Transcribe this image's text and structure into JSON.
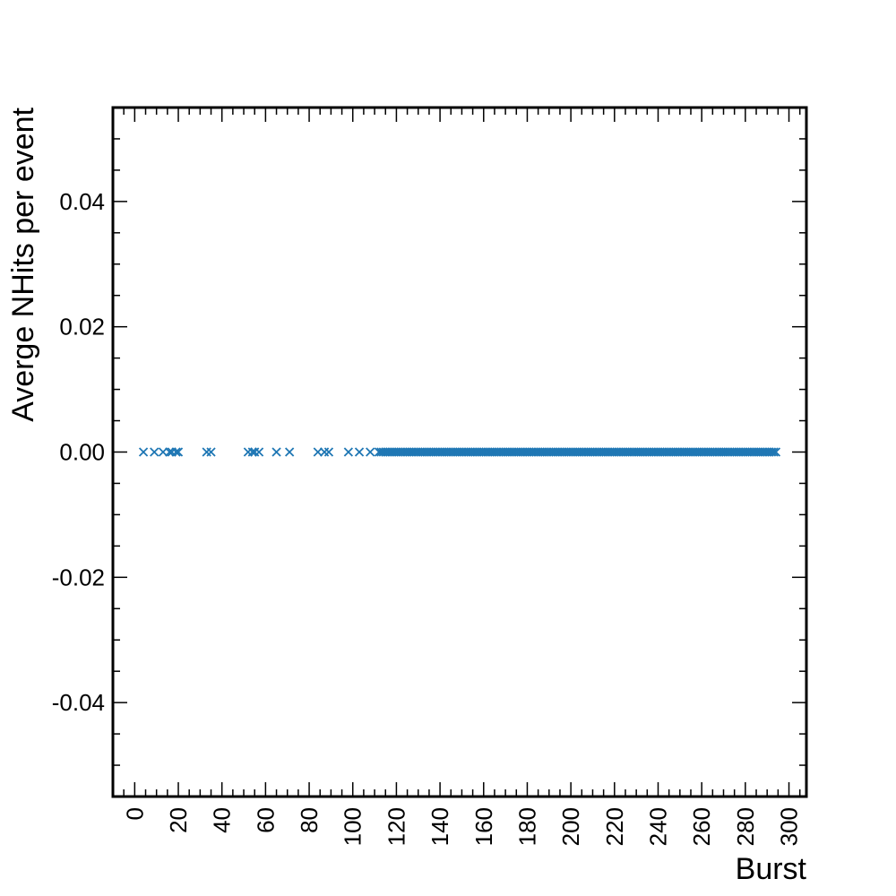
{
  "chart_data": {
    "type": "scatter",
    "title": "",
    "xlabel": "Burst",
    "ylabel": "Averge NHits per event",
    "xlim": [
      -10,
      308
    ],
    "ylim": [
      -0.055,
      0.055
    ],
    "x_ticks": [
      0,
      20,
      40,
      60,
      80,
      100,
      120,
      140,
      160,
      180,
      200,
      220,
      240,
      260,
      280,
      300
    ],
    "x_tick_labels": [
      "0",
      "20",
      "40",
      "60",
      "80",
      "100",
      "120",
      "140",
      "160",
      "180",
      "200",
      "220",
      "240",
      "260",
      "280",
      "300"
    ],
    "y_ticks": [
      -0.04,
      -0.02,
      0.0,
      0.02,
      0.04
    ],
    "y_tick_labels": [
      "-0.04",
      "-0.02",
      "0.00",
      "0.02",
      "0.04"
    ],
    "grid": false,
    "marker": "x",
    "color": "#1f77b4",
    "series": [
      {
        "x": [
          4,
          9,
          13,
          16,
          17,
          19,
          20,
          33,
          35,
          52,
          54,
          55,
          57,
          65,
          71,
          84,
          87,
          89,
          98,
          103,
          108,
          112,
          113,
          114,
          115,
          116,
          117,
          118,
          119,
          120,
          121,
          122,
          123,
          124,
          125,
          126,
          127,
          128,
          129,
          130,
          131,
          132,
          133,
          134,
          135,
          136,
          137,
          138,
          139,
          140,
          141,
          142,
          143,
          144,
          145,
          146,
          147,
          148,
          149,
          150,
          151,
          152,
          153,
          154,
          155,
          156,
          157,
          158,
          159,
          160,
          161,
          162,
          163,
          164,
          165,
          166,
          167,
          168,
          169,
          170,
          171,
          172,
          173,
          174,
          175,
          176,
          177,
          178,
          179,
          180,
          181,
          182,
          183,
          184,
          185,
          186,
          187,
          188,
          189,
          190,
          191,
          192,
          193,
          194,
          195,
          196,
          197,
          198,
          199,
          200,
          201,
          202,
          203,
          204,
          205,
          206,
          207,
          208,
          209,
          210,
          211,
          212,
          213,
          214,
          215,
          216,
          217,
          218,
          219,
          220,
          221,
          222,
          223,
          224,
          225,
          226,
          227,
          228,
          229,
          230,
          231,
          232,
          233,
          234,
          235,
          236,
          237,
          238,
          239,
          240,
          241,
          242,
          243,
          244,
          245,
          246,
          247,
          248,
          249,
          250,
          251,
          252,
          253,
          254,
          255,
          256,
          257,
          258,
          259,
          260,
          261,
          262,
          263,
          264,
          265,
          266,
          267,
          268,
          269,
          270,
          271,
          272,
          273,
          274,
          275,
          276,
          277,
          278,
          279,
          280,
          281,
          282,
          283,
          284,
          285,
          286,
          287,
          288,
          289,
          290,
          291,
          292,
          293,
          294
        ],
        "y_constant": 0.0
      }
    ]
  }
}
